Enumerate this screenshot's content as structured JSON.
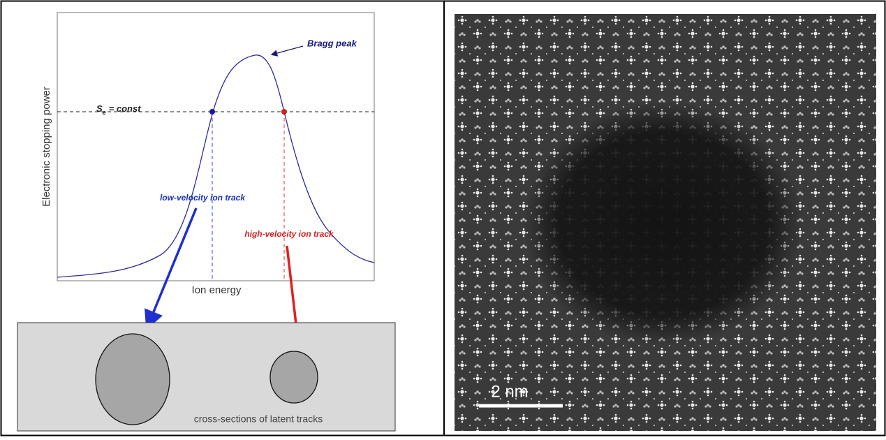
{
  "left_panel": {
    "peak_annotation": "Bragg peak",
    "se_symbol": "S",
    "se_subscript": "e",
    "se_equation": "= const",
    "y_axis_label": "Electronic stopping power",
    "x_axis_label": "Ion energy",
    "low_velocity_label": "low-velocity ion track",
    "high_velocity_label": "high-velocity ion track",
    "caption": "cross-sections of latent tracks"
  },
  "right_panel": {
    "scale_bar_label": "2 nm"
  }
}
